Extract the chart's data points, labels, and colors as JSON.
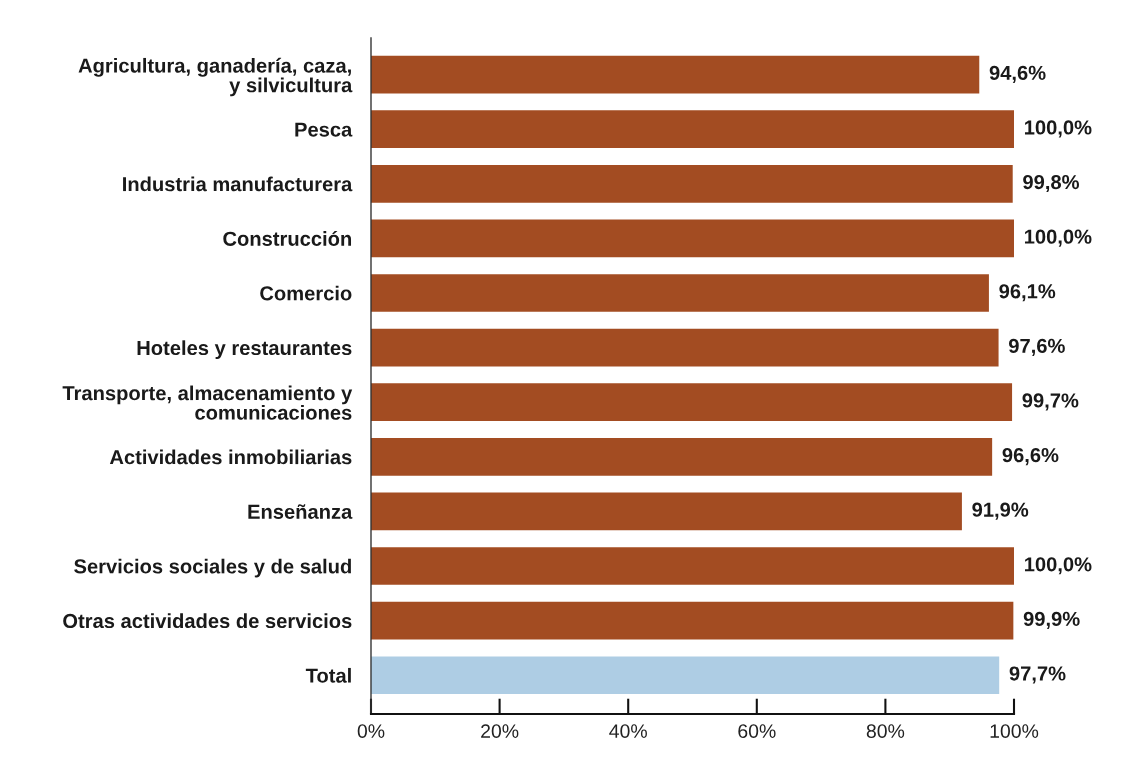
{
  "chart_data": {
    "type": "bar",
    "orientation": "horizontal",
    "categories": [
      "Agricultura, ganadería, caza,\ny silvicultura",
      "Pesca",
      "Industria manufacturera",
      "Construcción",
      "Comercio",
      "Hoteles y restaurantes",
      "Transporte, almacenamiento y\ncomunicaciones",
      "Actividades inmobiliarias",
      "Enseñanza",
      "Servicios sociales y de salud",
      "Otras actividades de servicios",
      "Total"
    ],
    "values": [
      94.6,
      100.0,
      99.8,
      100.0,
      96.1,
      97.6,
      99.7,
      96.6,
      91.9,
      100.0,
      99.9,
      97.7
    ],
    "colors": [
      "#a34c22",
      "#a34c22",
      "#a34c22",
      "#a34c22",
      "#a34c22",
      "#a34c22",
      "#a34c22",
      "#a34c22",
      "#a34c22",
      "#a34c22",
      "#a34c22",
      "#aecde4"
    ],
    "value_labels": [
      "94,6%",
      "100,0%",
      "99,8%",
      "100,0%",
      "96,1%",
      "97,6%",
      "99,7%",
      "96,6%",
      "91,9%",
      "100,0%",
      "99,9%",
      "97,7%"
    ],
    "xlim": [
      0,
      100
    ],
    "xticks": [
      {
        "value": 0,
        "label": "0%"
      },
      {
        "value": 20,
        "label": "20%"
      },
      {
        "value": 40,
        "label": "40%"
      },
      {
        "value": 60,
        "label": "60%"
      },
      {
        "value": 80,
        "label": "80%"
      },
      {
        "value": 100,
        "label": "100%"
      }
    ]
  }
}
